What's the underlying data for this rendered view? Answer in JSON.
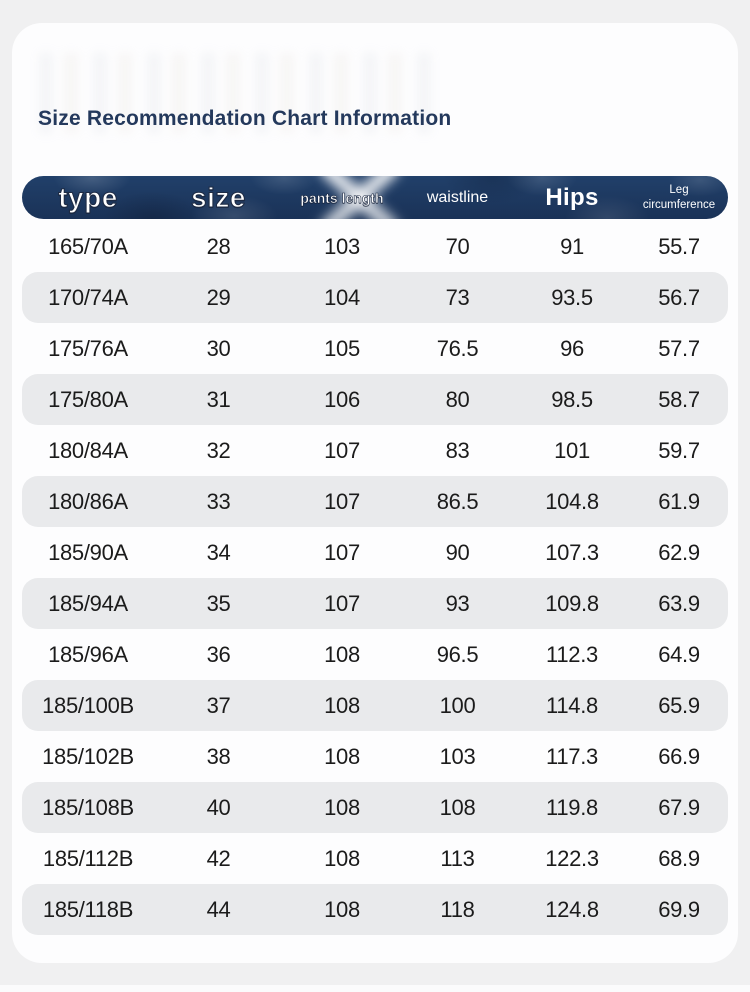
{
  "title": "Size Recommendation Chart Information",
  "table": {
    "columns": [
      "type",
      "size",
      "pants length",
      "waistline",
      "Hips",
      "Leg circumference"
    ],
    "rows": [
      [
        "165/70A",
        "28",
        "103",
        "70",
        "91",
        "55.7"
      ],
      [
        "170/74A",
        "29",
        "104",
        "73",
        "93.5",
        "56.7"
      ],
      [
        "175/76A",
        "30",
        "105",
        "76.5",
        "96",
        "57.7"
      ],
      [
        "175/80A",
        "31",
        "106",
        "80",
        "98.5",
        "58.7"
      ],
      [
        "180/84A",
        "32",
        "107",
        "83",
        "101",
        "59.7"
      ],
      [
        "180/86A",
        "33",
        "107",
        "86.5",
        "104.8",
        "61.9"
      ],
      [
        "185/90A",
        "34",
        "107",
        "90",
        "107.3",
        "62.9"
      ],
      [
        "185/94A",
        "35",
        "107",
        "93",
        "109.8",
        "63.9"
      ],
      [
        "185/96A",
        "36",
        "108",
        "96.5",
        "112.3",
        "64.9"
      ],
      [
        "185/100B",
        "37",
        "108",
        "100",
        "114.8",
        "65.9"
      ],
      [
        "185/102B",
        "38",
        "108",
        "103",
        "117.3",
        "66.9"
      ],
      [
        "185/108B",
        "40",
        "108",
        "108",
        "119.8",
        "67.9"
      ],
      [
        "185/112B",
        "42",
        "108",
        "113",
        "122.3",
        "68.9"
      ],
      [
        "185/118B",
        "44",
        "108",
        "118",
        "124.8",
        "69.9"
      ]
    ]
  },
  "colors": {
    "page_bg": "#f0f0f1",
    "card_bg": "#fdfdfe",
    "header_bg": "#21406a",
    "row_alt_bg": "#e9eaec",
    "title_color": "#24395c"
  }
}
